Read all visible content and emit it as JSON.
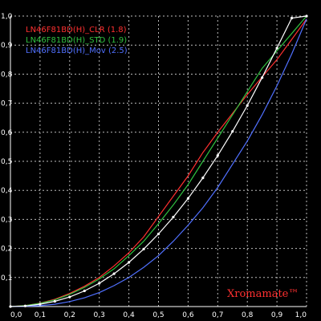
{
  "chart_data": {
    "type": "line",
    "title": "",
    "xlabel": "",
    "ylabel": "",
    "xlim": [
      0,
      1
    ],
    "ylim": [
      0,
      1
    ],
    "grid": true,
    "legend_position": "top-left",
    "x_ticks": [
      "0,0",
      "0,1",
      "0,2",
      "0,3",
      "0,4",
      "0,5",
      "0,6",
      "0,7",
      "0,8",
      "0,9",
      "1,0"
    ],
    "y_ticks": [
      "0,0",
      "0,1",
      "0,2",
      "0,3",
      "0,4",
      "0,5",
      "0,6",
      "0,7",
      "0,8",
      "0,9",
      "1,0"
    ],
    "series": [
      {
        "name": "LN46F81BD(H)_CLR (1.8)",
        "color": "#ff3030",
        "x": [
          0,
          0.05,
          0.1,
          0.15,
          0.2,
          0.25,
          0.3,
          0.35,
          0.4,
          0.45,
          0.5,
          0.55,
          0.6,
          0.65,
          0.7,
          0.75,
          0.8,
          0.85,
          0.9,
          0.95,
          1.0
        ],
        "y": [
          0,
          0.003,
          0.012,
          0.025,
          0.045,
          0.07,
          0.1,
          0.14,
          0.185,
          0.24,
          0.31,
          0.38,
          0.45,
          0.53,
          0.6,
          0.665,
          0.73,
          0.79,
          0.85,
          0.92,
          0.99
        ]
      },
      {
        "name": "LN46F81BD(H)_STD (1.9)",
        "color": "#30c040",
        "x": [
          0,
          0.05,
          0.1,
          0.15,
          0.2,
          0.25,
          0.3,
          0.35,
          0.4,
          0.45,
          0.5,
          0.55,
          0.6,
          0.65,
          0.7,
          0.75,
          0.8,
          0.85,
          0.9,
          0.95,
          1.0
        ],
        "y": [
          0,
          0.003,
          0.011,
          0.023,
          0.042,
          0.066,
          0.095,
          0.13,
          0.175,
          0.225,
          0.285,
          0.35,
          0.42,
          0.5,
          0.58,
          0.66,
          0.74,
          0.82,
          0.88,
          0.94,
          1.0
        ]
      },
      {
        "name": "LN46F81BD(H)_Mov (2.5)",
        "color": "#5070ff",
        "x": [
          0,
          0.05,
          0.1,
          0.15,
          0.2,
          0.25,
          0.3,
          0.35,
          0.4,
          0.45,
          0.5,
          0.55,
          0.6,
          0.65,
          0.7,
          0.75,
          0.8,
          0.85,
          0.9,
          0.95,
          1.0
        ],
        "y": [
          0,
          0.001,
          0.003,
          0.008,
          0.017,
          0.03,
          0.048,
          0.072,
          0.1,
          0.135,
          0.175,
          0.225,
          0.28,
          0.34,
          0.41,
          0.49,
          0.57,
          0.66,
          0.76,
          0.87,
          0.99
        ]
      },
      {
        "color": "#ffffff",
        "x": [
          0,
          0.05,
          0.1,
          0.15,
          0.2,
          0.25,
          0.3,
          0.35,
          0.4,
          0.45,
          0.5,
          0.55,
          0.6,
          0.65,
          0.7,
          0.75,
          0.8,
          0.85,
          0.9,
          0.95,
          1.0
        ],
        "y": [
          0,
          0.002,
          0.008,
          0.018,
          0.033,
          0.054,
          0.08,
          0.113,
          0.152,
          0.198,
          0.25,
          0.308,
          0.372,
          0.443,
          0.52,
          0.603,
          0.692,
          0.788,
          0.89,
          0.993,
          1.0
        ]
      }
    ]
  },
  "watermark": "Xromamate™"
}
